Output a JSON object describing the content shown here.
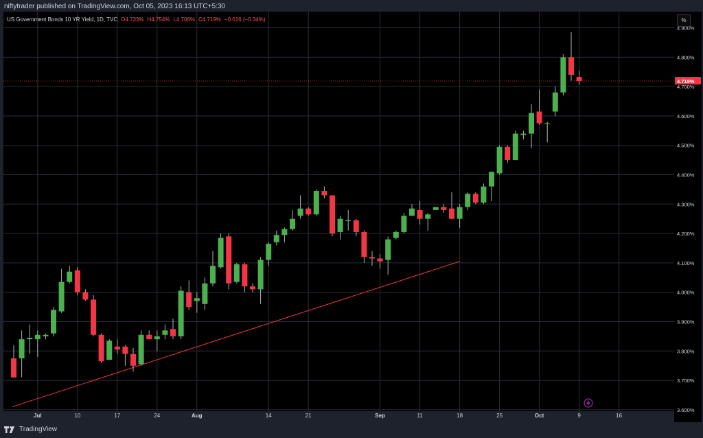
{
  "header": {
    "publish_line": "niftytrader published on TradingView.com, Oct 05, 2023 16:13 UTC+5:30"
  },
  "legend": {
    "symbol": "US Government Bonds 10 YR Yield, 1D, TVC",
    "open": "O4.733%",
    "high": "H4.754%",
    "low": "L4.706%",
    "close": "C4.719%",
    "change": "−0.016 (−0.34%)"
  },
  "toolbar": {
    "percent_button": "%"
  },
  "footer": {
    "brand": "TradingView"
  },
  "colors": {
    "up": "#4caf50",
    "down": "#f23645",
    "trend": "#f23645",
    "grid": "#2a2e39",
    "background": "#000000"
  },
  "chart_data": {
    "type": "candlestick",
    "title": "",
    "unit": "%",
    "ylim": [
      3.595,
      4.955
    ],
    "y_ticks": [
      {
        "v": 3.6,
        "label": "3.600%"
      },
      {
        "v": 3.7,
        "label": "3.700%"
      },
      {
        "v": 3.8,
        "label": "3.800%"
      },
      {
        "v": 3.9,
        "label": "3.900%"
      },
      {
        "v": 4.0,
        "label": "4.000%"
      },
      {
        "v": 4.1,
        "label": "4.100%"
      },
      {
        "v": 4.2,
        "label": "4.200%"
      },
      {
        "v": 4.3,
        "label": "4.300%"
      },
      {
        "v": 4.4,
        "label": "4.400%"
      },
      {
        "v": 4.5,
        "label": "4.500%"
      },
      {
        "v": 4.6,
        "label": "4.600%"
      },
      {
        "v": 4.7,
        "label": "4.700%"
      },
      {
        "v": 4.8,
        "label": "4.800%"
      },
      {
        "v": 4.9,
        "label": "4.900%"
      }
    ],
    "x_ticks": [
      {
        "i": 3,
        "label": "Jul",
        "bold": true
      },
      {
        "i": 8,
        "label": "10"
      },
      {
        "i": 13,
        "label": "17"
      },
      {
        "i": 18,
        "label": "24"
      },
      {
        "i": 23,
        "label": "Aug",
        "bold": true
      },
      {
        "i": 32,
        "label": "14"
      },
      {
        "i": 37,
        "label": "21"
      },
      {
        "i": 46,
        "label": "Sep",
        "bold": true
      },
      {
        "i": 51,
        "label": "11"
      },
      {
        "i": 56,
        "label": "18"
      },
      {
        "i": 61,
        "label": "25"
      },
      {
        "i": 66,
        "label": "Oct",
        "bold": true
      },
      {
        "i": 71,
        "label": "9"
      },
      {
        "i": 76,
        "label": "16"
      }
    ],
    "candles": [
      {
        "o": 3.775,
        "h": 3.82,
        "l": 3.71,
        "c": 3.71
      },
      {
        "o": 3.775,
        "h": 3.87,
        "l": 3.71,
        "c": 3.84
      },
      {
        "o": 3.84,
        "h": 3.89,
        "l": 3.79,
        "c": 3.845
      },
      {
        "o": 3.84,
        "h": 3.87,
        "l": 3.78,
        "c": 3.855
      },
      {
        "o": 3.85,
        "h": 3.86,
        "l": 3.84,
        "c": 3.855
      },
      {
        "o": 3.86,
        "h": 3.95,
        "l": 3.85,
        "c": 3.94
      },
      {
        "o": 3.935,
        "h": 4.08,
        "l": 3.93,
        "c": 4.035
      },
      {
        "o": 4.035,
        "h": 4.09,
        "l": 4.03,
        "c": 4.07
      },
      {
        "o": 4.075,
        "h": 4.085,
        "l": 3.99,
        "c": 4.0
      },
      {
        "o": 4.0,
        "h": 4.01,
        "l": 3.97,
        "c": 3.975
      },
      {
        "o": 3.975,
        "h": 3.99,
        "l": 3.85,
        "c": 3.855
      },
      {
        "o": 3.855,
        "h": 3.86,
        "l": 3.76,
        "c": 3.765
      },
      {
        "o": 3.77,
        "h": 3.84,
        "l": 3.77,
        "c": 3.835
      },
      {
        "o": 3.815,
        "h": 3.84,
        "l": 3.79,
        "c": 3.805
      },
      {
        "o": 3.815,
        "h": 3.82,
        "l": 3.75,
        "c": 3.79
      },
      {
        "o": 3.79,
        "h": 3.81,
        "l": 3.73,
        "c": 3.75
      },
      {
        "o": 3.755,
        "h": 3.87,
        "l": 3.75,
        "c": 3.855
      },
      {
        "o": 3.855,
        "h": 3.87,
        "l": 3.84,
        "c": 3.84
      },
      {
        "o": 3.84,
        "h": 3.87,
        "l": 3.8,
        "c": 3.85
      },
      {
        "o": 3.855,
        "h": 3.89,
        "l": 3.84,
        "c": 3.87
      },
      {
        "o": 3.875,
        "h": 3.91,
        "l": 3.84,
        "c": 3.85
      },
      {
        "o": 3.85,
        "h": 4.02,
        "l": 3.84,
        "c": 4.005
      },
      {
        "o": 4.0,
        "h": 4.04,
        "l": 3.94,
        "c": 3.95
      },
      {
        "o": 3.97,
        "h": 4.0,
        "l": 3.93,
        "c": 3.98
      },
      {
        "o": 3.96,
        "h": 4.05,
        "l": 3.94,
        "c": 4.03
      },
      {
        "o": 4.03,
        "h": 4.14,
        "l": 4.02,
        "c": 4.09
      },
      {
        "o": 4.085,
        "h": 4.2,
        "l": 4.08,
        "c": 4.185
      },
      {
        "o": 4.19,
        "h": 4.2,
        "l": 4.01,
        "c": 4.03
      },
      {
        "o": 4.035,
        "h": 4.1,
        "l": 4.03,
        "c": 4.095
      },
      {
        "o": 4.095,
        "h": 4.1,
        "l": 4.0,
        "c": 4.02
      },
      {
        "o": 4.02,
        "h": 4.03,
        "l": 4.0,
        "c": 4.01
      },
      {
        "o": 4.01,
        "h": 4.12,
        "l": 3.96,
        "c": 4.11
      },
      {
        "o": 4.11,
        "h": 4.17,
        "l": 4.09,
        "c": 4.165
      },
      {
        "o": 4.17,
        "h": 4.21,
        "l": 4.16,
        "c": 4.195
      },
      {
        "o": 4.195,
        "h": 4.22,
        "l": 4.17,
        "c": 4.215
      },
      {
        "o": 4.215,
        "h": 4.28,
        "l": 4.21,
        "c": 4.25
      },
      {
        "o": 4.26,
        "h": 4.33,
        "l": 4.25,
        "c": 4.285
      },
      {
        "o": 4.285,
        "h": 4.29,
        "l": 4.26,
        "c": 4.265
      },
      {
        "o": 4.265,
        "h": 4.35,
        "l": 4.26,
        "c": 4.345
      },
      {
        "o": 4.345,
        "h": 4.36,
        "l": 4.32,
        "c": 4.33
      },
      {
        "o": 4.33,
        "h": 4.33,
        "l": 4.19,
        "c": 4.2
      },
      {
        "o": 4.205,
        "h": 4.26,
        "l": 4.18,
        "c": 4.25
      },
      {
        "o": 4.245,
        "h": 4.28,
        "l": 4.21,
        "c": 4.245
      },
      {
        "o": 4.245,
        "h": 4.25,
        "l": 4.19,
        "c": 4.205
      },
      {
        "o": 4.205,
        "h": 4.21,
        "l": 4.1,
        "c": 4.12
      },
      {
        "o": 4.12,
        "h": 4.14,
        "l": 4.09,
        "c": 4.115
      },
      {
        "o": 4.115,
        "h": 4.13,
        "l": 4.08,
        "c": 4.105
      },
      {
        "o": 4.11,
        "h": 4.19,
        "l": 4.06,
        "c": 4.18
      },
      {
        "o": 4.185,
        "h": 4.21,
        "l": 4.18,
        "c": 4.205
      },
      {
        "o": 4.205,
        "h": 4.27,
        "l": 4.2,
        "c": 4.26
      },
      {
        "o": 4.26,
        "h": 4.3,
        "l": 4.26,
        "c": 4.285
      },
      {
        "o": 4.28,
        "h": 4.31,
        "l": 4.23,
        "c": 4.25
      },
      {
        "o": 4.25,
        "h": 4.27,
        "l": 4.21,
        "c": 4.265
      },
      {
        "o": 4.28,
        "h": 4.29,
        "l": 4.28,
        "c": 4.29
      },
      {
        "o": 4.29,
        "h": 4.3,
        "l": 4.27,
        "c": 4.28
      },
      {
        "o": 4.285,
        "h": 4.34,
        "l": 4.25,
        "c": 4.25
      },
      {
        "o": 4.25,
        "h": 4.3,
        "l": 4.22,
        "c": 4.29
      },
      {
        "o": 4.29,
        "h": 4.34,
        "l": 4.28,
        "c": 4.335
      },
      {
        "o": 4.335,
        "h": 4.34,
        "l": 4.3,
        "c": 4.305
      },
      {
        "o": 4.305,
        "h": 4.37,
        "l": 4.3,
        "c": 4.36
      },
      {
        "o": 4.36,
        "h": 4.41,
        "l": 4.31,
        "c": 4.41
      },
      {
        "o": 4.405,
        "h": 4.5,
        "l": 4.4,
        "c": 4.495
      },
      {
        "o": 4.495,
        "h": 4.5,
        "l": 4.44,
        "c": 4.45
      },
      {
        "o": 4.45,
        "h": 4.55,
        "l": 4.45,
        "c": 4.54
      },
      {
        "o": 4.535,
        "h": 4.55,
        "l": 4.52,
        "c": 4.54
      },
      {
        "o": 4.54,
        "h": 4.64,
        "l": 4.49,
        "c": 4.61
      },
      {
        "o": 4.615,
        "h": 4.69,
        "l": 4.57,
        "c": 4.575
      },
      {
        "o": 4.575,
        "h": 4.58,
        "l": 4.51,
        "c": 4.575
      },
      {
        "o": 4.615,
        "h": 4.7,
        "l": 4.6,
        "c": 4.68
      },
      {
        "o": 4.68,
        "h": 4.81,
        "l": 4.67,
        "c": 4.8
      },
      {
        "o": 4.8,
        "h": 4.885,
        "l": 4.72,
        "c": 4.74
      },
      {
        "o": 4.733,
        "h": 4.754,
        "l": 4.706,
        "c": 4.719
      }
    ],
    "x_domain": [
      0,
      82
    ],
    "trendline": {
      "x0": -0.2,
      "y0": 3.61,
      "x1": 56,
      "y1": 4.105
    },
    "last_price_label": "4.719%",
    "last_price": 4.719
  }
}
